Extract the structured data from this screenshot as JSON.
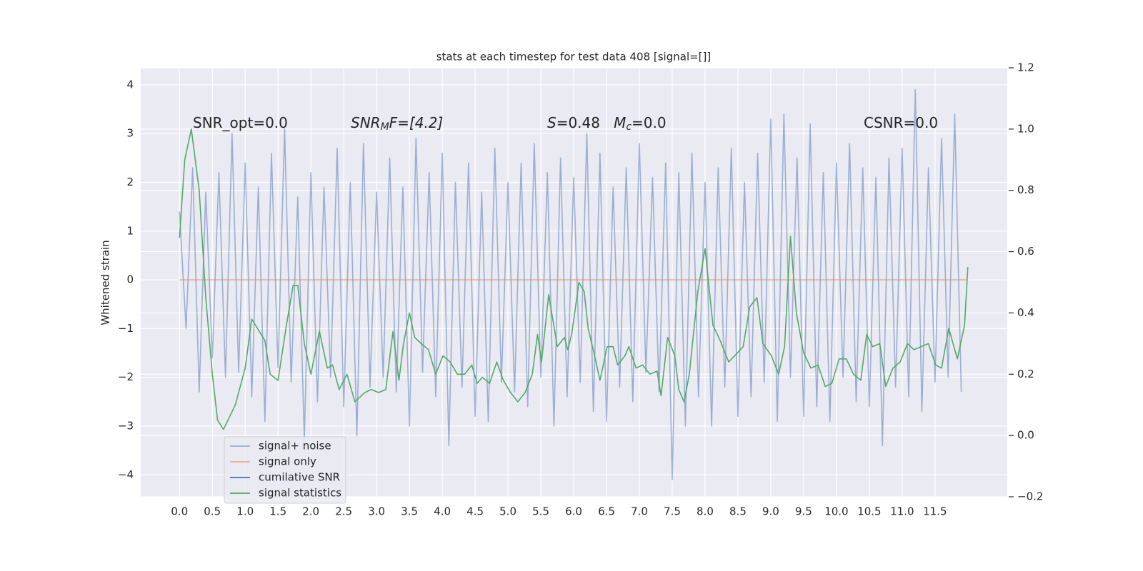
{
  "chart_data": {
    "type": "line",
    "title": "stats at each timestep for test data 408 [signal=[]]",
    "ylabel": "Whitened strain",
    "xlim": [
      -0.59,
      12.6
    ],
    "ylim": [
      -4.45,
      4.35
    ],
    "y2lim": [
      -0.2,
      1.2
    ],
    "grid": true,
    "xticks": [
      {
        "value": 0,
        "label": "0.0"
      },
      0.5,
      {
        "value": 1,
        "label": "1.0"
      },
      1.5,
      {
        "value": 2,
        "label": "2.0"
      },
      2.5,
      {
        "value": 3,
        "label": "3.0"
      },
      3.5,
      {
        "value": 4,
        "label": "4.0"
      },
      4.5,
      {
        "value": 5,
        "label": "5.0"
      },
      5.5,
      {
        "value": 6,
        "label": "6.0"
      },
      6.5,
      {
        "value": 7,
        "label": "7.0"
      },
      7.5,
      {
        "value": 8,
        "label": "8.0"
      },
      8.5,
      {
        "value": 9,
        "label": "9.0"
      },
      9.5,
      {
        "value": 10,
        "label": "10.0"
      },
      10.5,
      {
        "value": 11,
        "label": "11.0"
      },
      11.5
    ],
    "yticks": [
      {
        "value": -4,
        "label": "−4"
      },
      {
        "value": -3,
        "label": "−3"
      },
      {
        "value": -2,
        "label": "−2"
      },
      {
        "value": -1,
        "label": "−1"
      },
      0,
      1,
      2,
      3,
      4
    ],
    "y2ticks": [
      {
        "value": -0.2,
        "label": "−0.2"
      },
      {
        "value": 0,
        "label": "0.0"
      },
      0.2,
      0.4,
      0.6,
      0.8,
      {
        "value": 1,
        "label": "1.0"
      },
      1.2
    ],
    "series": [
      {
        "name": "signal+ noise",
        "color": "#4c72b0",
        "alpha": 0.5,
        "x": [
          0,
          0.1,
          0.2,
          0.3,
          0.4,
          0.5,
          0.6,
          0.7,
          0.8,
          0.9,
          1,
          1.1,
          1.2,
          1.3,
          1.4,
          1.5,
          1.6,
          1.7,
          1.8,
          1.9,
          2,
          2.1,
          2.2,
          2.3,
          2.4,
          2.5,
          2.6,
          2.7,
          2.8,
          2.9,
          3,
          3.1,
          3.2,
          3.3,
          3.4,
          3.5,
          3.6,
          3.7,
          3.8,
          3.9,
          4,
          4.1,
          4.2,
          4.3,
          4.4,
          4.5,
          4.6,
          4.7,
          4.8,
          4.9,
          5,
          5.1,
          5.2,
          5.3,
          5.4,
          5.5,
          5.6,
          5.7,
          5.8,
          5.9,
          6,
          6.1,
          6.2,
          6.3,
          6.4,
          6.5,
          6.6,
          6.7,
          6.8,
          6.9,
          7,
          7.1,
          7.2,
          7.3,
          7.4,
          7.5,
          7.6,
          7.7,
          7.8,
          7.9,
          8,
          8.1,
          8.2,
          8.3,
          8.4,
          8.5,
          8.6,
          8.7,
          8.8,
          8.9,
          9,
          9.1,
          9.2,
          9.3,
          9.4,
          9.5,
          9.6,
          9.7,
          9.8,
          9.9,
          10,
          10.1,
          10.2,
          10.3,
          10.4,
          10.5,
          10.6,
          10.7,
          10.8,
          10.9,
          11,
          11.1,
          11.2,
          11.3,
          11.4,
          11.5,
          11.6,
          11.7,
          11.8,
          11.9
        ],
        "values": [
          1.4,
          -1.0,
          2.3,
          -2.3,
          1.8,
          -1.6,
          2.2,
          -2.0,
          3.0,
          -1.9,
          2.4,
          -2.4,
          1.9,
          -2.9,
          2.6,
          -1.8,
          3.1,
          -2.1,
          1.7,
          -3.3,
          2.2,
          -2.5,
          1.9,
          -2.0,
          2.7,
          -2.6,
          2.0,
          -3.2,
          2.8,
          -2.2,
          1.8,
          -2.0,
          2.5,
          -2.3,
          1.9,
          -3.0,
          2.9,
          -1.9,
          2.2,
          -2.4,
          2.6,
          -3.4,
          2.0,
          -2.2,
          2.4,
          -2.8,
          1.8,
          -2.9,
          2.7,
          -2.1,
          2.0,
          -2.3,
          2.4,
          -2.6,
          2.8,
          -2.0,
          2.2,
          -3.0,
          2.5,
          -2.4,
          2.1,
          -2.1,
          3.0,
          -2.7,
          2.6,
          -2.9,
          1.9,
          -2.2,
          2.3,
          -2.5,
          2.8,
          -1.9,
          2.1,
          -2.3,
          2.4,
          -4.1,
          2.2,
          -3.0,
          2.6,
          -2.4,
          2.0,
          -3.0,
          2.3,
          -2.2,
          2.7,
          -2.8,
          2.0,
          -2.4,
          2.6,
          -2.1,
          3.3,
          -2.9,
          3.4,
          -2.0,
          2.5,
          -2.8,
          3.2,
          -2.6,
          2.2,
          -2.9,
          2.4,
          -2.0,
          2.8,
          -2.5,
          2.3,
          -2.6,
          2.1,
          -3.4,
          2.5,
          -2.2,
          2.7,
          -2.4,
          3.9,
          -2.7,
          2.3,
          -2.1,
          2.9,
          -2.0,
          3.4,
          -2.3
        ]
      },
      {
        "name": "signal only",
        "color": "#dd8452",
        "alpha": 0.6,
        "x": [
          0,
          11.99
        ],
        "values": [
          0,
          0
        ]
      },
      {
        "name": "cumilative SNR",
        "color": "#4c72b0",
        "alpha": 1,
        "x": [],
        "values": []
      },
      {
        "name": "signal statistics",
        "color": "#55a868",
        "alpha": 1,
        "axis": "y2",
        "x": [
          0,
          0.08,
          0.18,
          0.3,
          0.4,
          0.5,
          0.58,
          0.67,
          0.85,
          1.0,
          1.1,
          1.3,
          1.38,
          1.5,
          1.62,
          1.73,
          1.8,
          1.9,
          2.0,
          2.13,
          2.25,
          2.33,
          2.43,
          2.55,
          2.67,
          2.82,
          2.92,
          3.03,
          3.14,
          3.25,
          3.34,
          3.41,
          3.5,
          3.58,
          3.68,
          3.79,
          3.9,
          4.01,
          4.12,
          4.23,
          4.34,
          4.45,
          4.53,
          4.61,
          4.72,
          4.83,
          4.93,
          5.04,
          5.15,
          5.26,
          5.37,
          5.45,
          5.51,
          5.62,
          5.75,
          5.86,
          5.91,
          5.97,
          6.08,
          6.16,
          6.22,
          6.33,
          6.4,
          6.51,
          6.6,
          6.67,
          6.78,
          6.84,
          6.95,
          7.05,
          7.16,
          7.27,
          7.33,
          7.43,
          7.54,
          7.6,
          7.68,
          7.76,
          7.89,
          8.0,
          8.12,
          8.23,
          8.36,
          8.45,
          8.58,
          8.68,
          8.79,
          8.88,
          9.01,
          9.12,
          9.21,
          9.3,
          9.39,
          9.5,
          9.61,
          9.72,
          9.83,
          9.93,
          10.04,
          10.15,
          10.26,
          10.37,
          10.46,
          10.55,
          10.66,
          10.75,
          10.86,
          10.97,
          11.08,
          11.18,
          11.29,
          11.4,
          11.51,
          11.6,
          11.71,
          11.84,
          11.95,
          12.0
        ],
        "values": [
          0.645,
          0.9,
          1.0,
          0.8,
          0.45,
          0.2,
          0.05,
          0.02,
          0.1,
          0.22,
          0.38,
          0.31,
          0.2,
          0.18,
          0.35,
          0.49,
          0.49,
          0.3,
          0.2,
          0.34,
          0.22,
          0.23,
          0.15,
          0.2,
          0.11,
          0.14,
          0.15,
          0.14,
          0.15,
          0.34,
          0.18,
          0.3,
          0.4,
          0.32,
          0.3,
          0.28,
          0.2,
          0.26,
          0.24,
          0.2,
          0.2,
          0.23,
          0.17,
          0.19,
          0.17,
          0.24,
          0.18,
          0.14,
          0.11,
          0.14,
          0.2,
          0.33,
          0.24,
          0.46,
          0.29,
          0.32,
          0.28,
          0.33,
          0.5,
          0.47,
          0.35,
          0.25,
          0.18,
          0.29,
          0.29,
          0.23,
          0.26,
          0.29,
          0.22,
          0.23,
          0.2,
          0.21,
          0.13,
          0.32,
          0.26,
          0.15,
          0.11,
          0.2,
          0.47,
          0.61,
          0.36,
          0.31,
          0.24,
          0.26,
          0.29,
          0.42,
          0.45,
          0.3,
          0.26,
          0.2,
          0.29,
          0.65,
          0.4,
          0.27,
          0.22,
          0.23,
          0.16,
          0.17,
          0.25,
          0.25,
          0.2,
          0.18,
          0.33,
          0.29,
          0.3,
          0.16,
          0.22,
          0.24,
          0.3,
          0.28,
          0.29,
          0.3,
          0.23,
          0.22,
          0.35,
          0.25,
          0.36,
          0.55
        ]
      }
    ],
    "annotations": [
      {
        "parts": [
          {
            "text": "SNR_opt=0.0"
          }
        ]
      },
      {
        "parts": [
          {
            "text": "SNR",
            "style": "italic"
          },
          {
            "text": "M",
            "style": "sub"
          },
          {
            "text": "F=[4.2]",
            "style": "italic-lead"
          }
        ]
      },
      {
        "parts": [
          {
            "text": "S",
            "style": "italic"
          },
          {
            "text": "=0.48   "
          },
          {
            "text": "M",
            "style": "italic"
          },
          {
            "text": "c",
            "style": "sub"
          },
          {
            "text": "=0.0"
          }
        ]
      },
      {
        "parts": [
          {
            "text": "CSNR=0.0"
          }
        ]
      }
    ]
  }
}
